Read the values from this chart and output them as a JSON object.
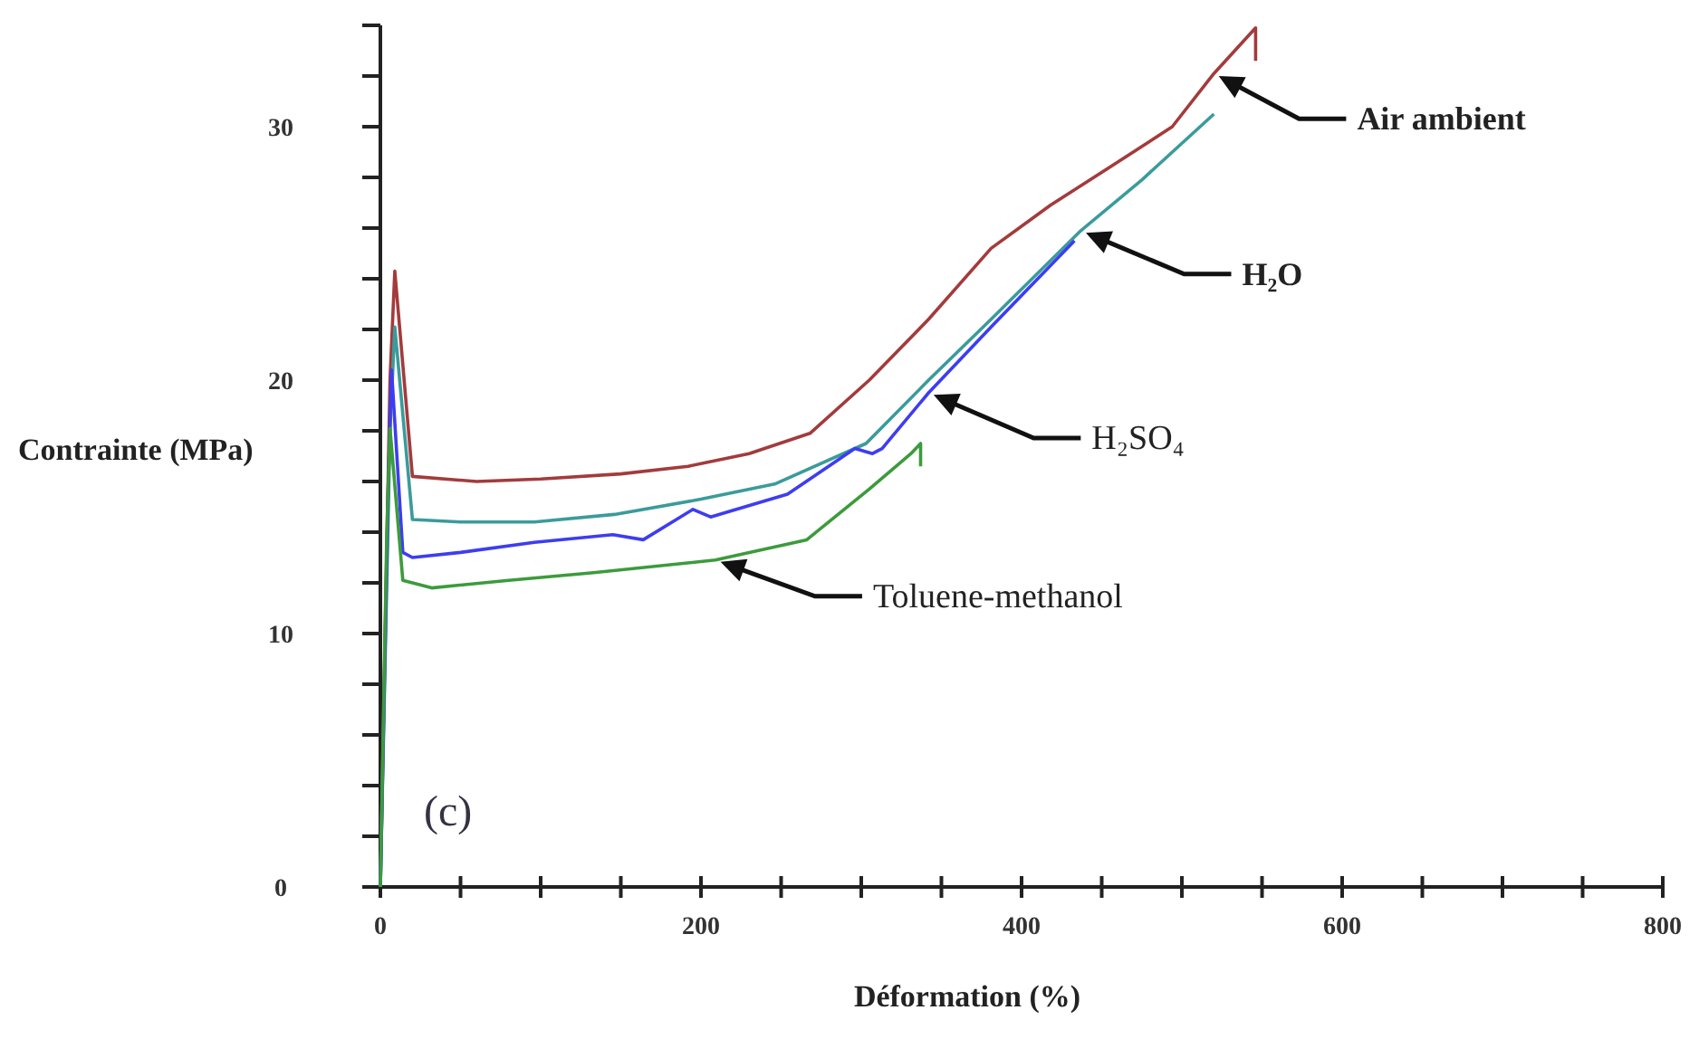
{
  "chart_data": {
    "type": "line",
    "xlabel": "Déformation (%)",
    "ylabel": "Contrainte (MPa)",
    "annotations": [
      "(c)"
    ],
    "xlim": [
      0,
      800
    ],
    "ylim": [
      0,
      34
    ],
    "xticks": [
      0,
      {
        "value": 50,
        "label": null
      },
      {
        "value": 100,
        "label": null
      },
      {
        "value": 150,
        "label": null
      },
      200,
      {
        "value": 250,
        "label": null
      },
      {
        "value": 300,
        "label": null
      },
      {
        "value": 350,
        "label": null
      },
      400,
      {
        "value": 450,
        "label": null
      },
      {
        "value": 500,
        "label": null
      },
      {
        "value": 550,
        "label": null
      },
      600,
      {
        "value": 650,
        "label": null
      },
      {
        "value": 700,
        "label": null
      },
      {
        "value": 750,
        "label": null
      },
      800
    ],
    "yticks": [
      0,
      {
        "value": 2,
        "label": null
      },
      {
        "value": 4,
        "label": null
      },
      {
        "value": 6,
        "label": null
      },
      {
        "value": 8,
        "label": null
      },
      10,
      {
        "value": 12,
        "label": null
      },
      {
        "value": 14,
        "label": null
      },
      {
        "value": 16,
        "label": null
      },
      {
        "value": 18,
        "label": null
      },
      20,
      {
        "value": 22,
        "label": null
      },
      {
        "value": 24,
        "label": null
      },
      {
        "value": 26,
        "label": null
      },
      {
        "value": 28,
        "label": null
      },
      30,
      {
        "value": 32,
        "label": null
      },
      {
        "value": 34,
        "label": null
      }
    ],
    "grid": false,
    "marker": "none",
    "line_style": "solid",
    "series": [
      {
        "name": "Air ambient",
        "color": "#a33b3c",
        "x": [
          0,
          6,
          9,
          20,
          60,
          100,
          150,
          192,
          230,
          268,
          305,
          342,
          381,
          418,
          455,
          494,
          520,
          546,
          546
        ],
        "values": [
          0,
          20,
          24.3,
          16.2,
          16,
          16.1,
          16.3,
          16.6,
          17.1,
          17.9,
          20,
          22.4,
          25.2,
          26.9,
          28.4,
          30,
          32.1,
          33.9,
          32.6
        ]
      },
      {
        "name": "H₂O",
        "color": "#3b9b9b",
        "x": [
          0,
          6,
          9,
          20,
          50,
          96,
          146,
          200,
          246,
          303,
          342,
          381,
          437,
          475,
          520
        ],
        "values": [
          0,
          18,
          22.1,
          14.5,
          14.4,
          14.4,
          14.7,
          15.3,
          15.9,
          17.5,
          20,
          22.4,
          25.9,
          27.9,
          30.5
        ]
      },
      {
        "name": "H₂SO₄",
        "color": "#3d3df0",
        "x": [
          0,
          5,
          7,
          14,
          20,
          50,
          96,
          145,
          164,
          195,
          206,
          254,
          296,
          307,
          313,
          342,
          381,
          433
        ],
        "values": [
          0,
          16,
          20.4,
          13.2,
          13,
          13.2,
          13.6,
          13.9,
          13.7,
          14.9,
          14.6,
          15.5,
          17.3,
          17.1,
          17.3,
          19.5,
          22.1,
          25.5
        ]
      },
      {
        "name": "Toluene-methanol",
        "color": "#3c9b3c",
        "x": [
          0,
          4,
          6,
          14,
          32,
          80,
          133,
          209,
          266,
          305,
          331,
          337,
          337
        ],
        "values": [
          0,
          14,
          18.1,
          12.1,
          11.8,
          12.1,
          12.4,
          12.9,
          13.7,
          15.7,
          17.1,
          17.5,
          16.6
        ]
      }
    ]
  }
}
